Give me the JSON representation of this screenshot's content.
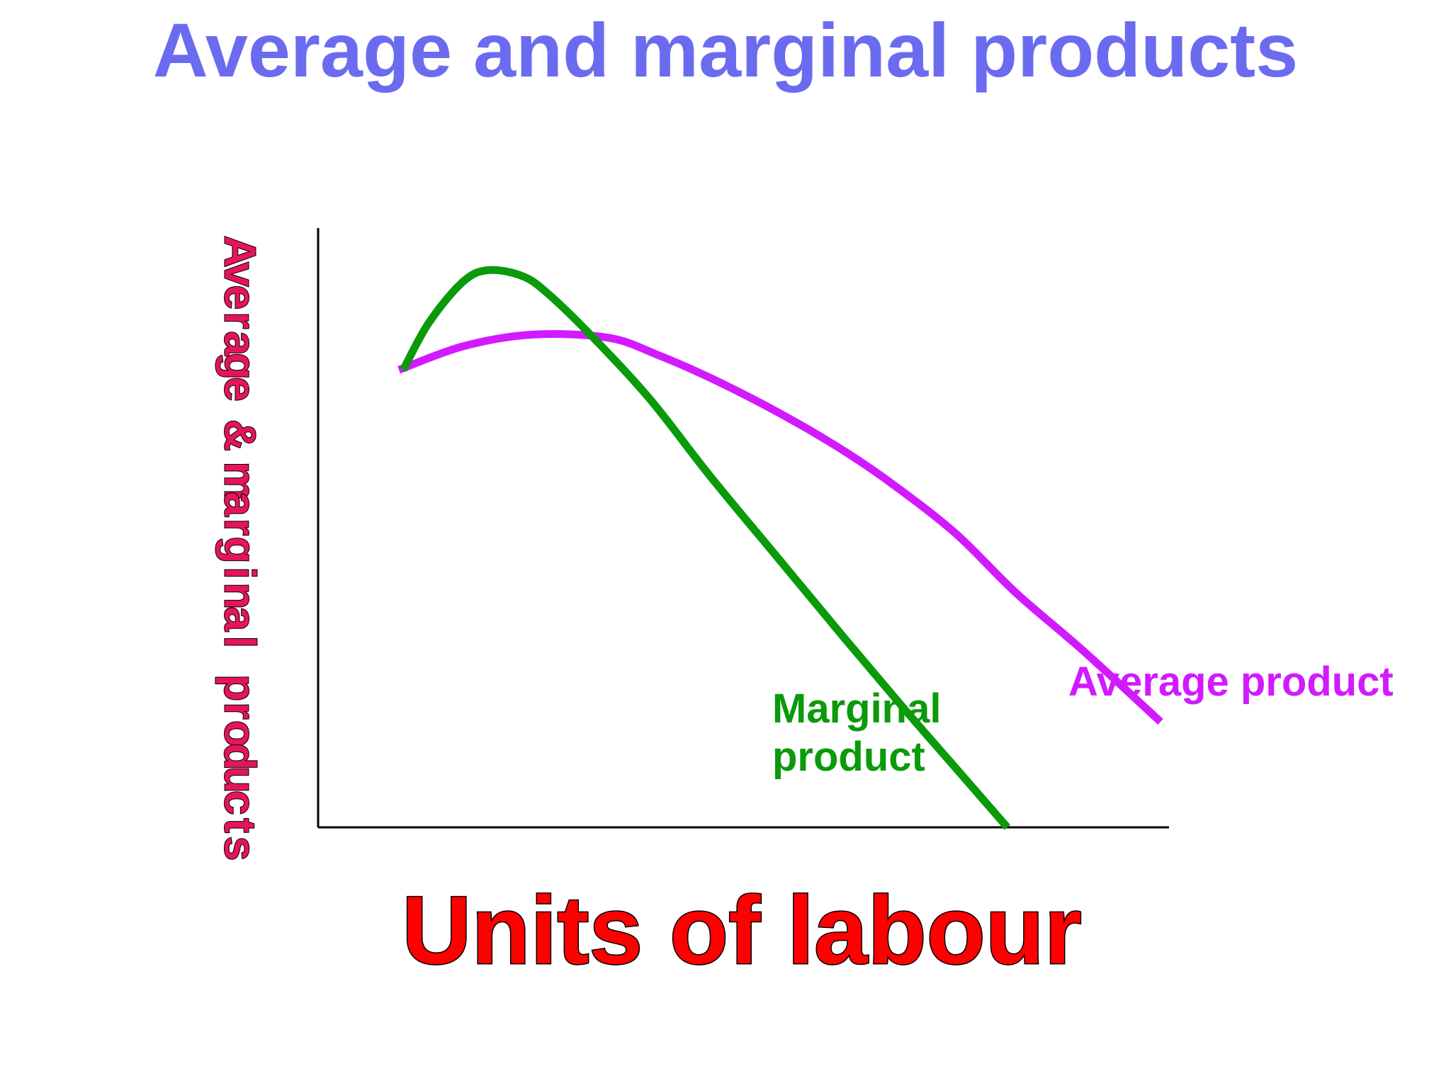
{
  "colors": {
    "title": "#6b6bf0",
    "xlabel": "#ff0000",
    "ylabel": "#e8145a",
    "axis": "#000000",
    "marginal": "#0a9a0a",
    "average": "#d21aff"
  },
  "chart_data": {
    "type": "line",
    "title": "Average and marginal products",
    "xlabel": "Units of labour",
    "ylabel": "Average & marginal products",
    "xlim": [
      0,
      100
    ],
    "ylim": [
      0,
      100
    ],
    "grid": false,
    "legend": "none (curves labelled directly)",
    "series": [
      {
        "name": "Marginal product",
        "label_lines": [
          "Marginal",
          "product"
        ],
        "color": "#0a9a0a",
        "x": [
          10,
          13,
          17,
          20,
          24,
          27,
          32,
          39,
          46,
          54,
          62,
          69,
          75,
          81
        ],
        "y": [
          78,
          86,
          93,
          95,
          94,
          91,
          84,
          73,
          60,
          46,
          32,
          20,
          10,
          0
        ]
      },
      {
        "name": "Average product",
        "label_lines": [
          "Average product"
        ],
        "color": "#d21aff",
        "x": [
          9.5,
          17,
          25,
          34,
          40,
          47,
          55,
          62,
          68,
          75,
          82,
          90,
          99
        ],
        "y": [
          78,
          82,
          84,
          83.5,
          80.5,
          76,
          70,
          64,
          58,
          50,
          40,
          30,
          18
        ]
      }
    ]
  }
}
